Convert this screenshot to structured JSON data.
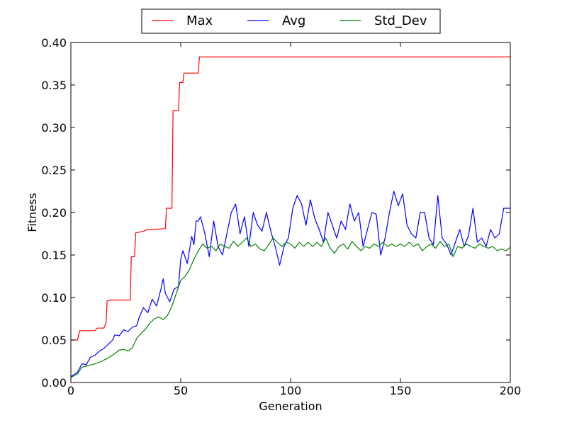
{
  "chart_data": {
    "type": "line",
    "title": "",
    "xlabel": "Generation",
    "ylabel": "Fitness",
    "xlim": [
      0,
      200
    ],
    "ylim": [
      0.0,
      0.4
    ],
    "xticks": [
      0,
      50,
      100,
      150,
      200
    ],
    "xtick_labels": [
      "0",
      "50",
      "100",
      "150",
      "200"
    ],
    "yticks": [
      0.0,
      0.05,
      0.1,
      0.15,
      0.2,
      0.25,
      0.3,
      0.35,
      0.4
    ],
    "ytick_labels": [
      "0.00",
      "0.05",
      "0.10",
      "0.15",
      "0.20",
      "0.25",
      "0.30",
      "0.35",
      "0.40"
    ],
    "grid": false,
    "legend_position": "top-center",
    "series": [
      {
        "name": "Max",
        "color": "#ff0000",
        "points": [
          [
            0,
            0.05
          ],
          [
            3,
            0.05
          ],
          [
            4,
            0.061
          ],
          [
            11,
            0.061
          ],
          [
            12,
            0.064
          ],
          [
            15,
            0.064
          ],
          [
            16,
            0.07
          ],
          [
            16.5,
            0.096
          ],
          [
            18,
            0.097
          ],
          [
            27,
            0.097
          ],
          [
            27.5,
            0.148
          ],
          [
            29,
            0.148
          ],
          [
            29.5,
            0.176
          ],
          [
            33,
            0.178
          ],
          [
            35,
            0.18
          ],
          [
            43,
            0.181
          ],
          [
            43.5,
            0.205
          ],
          [
            46,
            0.205
          ],
          [
            46.5,
            0.32
          ],
          [
            49,
            0.32
          ],
          [
            49.5,
            0.353
          ],
          [
            51,
            0.353
          ],
          [
            51.5,
            0.364
          ],
          [
            58,
            0.364
          ],
          [
            58.5,
            0.383
          ],
          [
            200,
            0.383
          ]
        ]
      },
      {
        "name": "Avg",
        "color": "#0000ff",
        "points": [
          [
            0,
            0.007
          ],
          [
            3,
            0.012
          ],
          [
            5,
            0.022
          ],
          [
            7,
            0.021
          ],
          [
            9,
            0.03
          ],
          [
            11,
            0.032
          ],
          [
            13,
            0.037
          ],
          [
            15,
            0.04
          ],
          [
            17,
            0.045
          ],
          [
            19,
            0.05
          ],
          [
            20,
            0.056
          ],
          [
            22,
            0.055
          ],
          [
            24,
            0.062
          ],
          [
            26,
            0.06
          ],
          [
            28,
            0.065
          ],
          [
            30,
            0.067
          ],
          [
            31,
            0.076
          ],
          [
            33,
            0.088
          ],
          [
            35,
            0.082
          ],
          [
            37,
            0.098
          ],
          [
            39,
            0.09
          ],
          [
            41,
            0.11
          ],
          [
            42,
            0.122
          ],
          [
            43,
            0.105
          ],
          [
            45,
            0.095
          ],
          [
            47,
            0.11
          ],
          [
            49,
            0.113
          ],
          [
            50,
            0.145
          ],
          [
            51,
            0.155
          ],
          [
            53,
            0.14
          ],
          [
            55,
            0.172
          ],
          [
            56,
            0.162
          ],
          [
            57,
            0.19
          ],
          [
            58,
            0.19
          ],
          [
            59,
            0.195
          ],
          [
            61,
            0.175
          ],
          [
            63,
            0.148
          ],
          [
            65,
            0.19
          ],
          [
            67,
            0.16
          ],
          [
            69,
            0.15
          ],
          [
            71,
            0.175
          ],
          [
            73,
            0.2
          ],
          [
            75,
            0.21
          ],
          [
            77,
            0.175
          ],
          [
            79,
            0.195
          ],
          [
            81,
            0.16
          ],
          [
            83,
            0.2
          ],
          [
            85,
            0.185
          ],
          [
            87,
            0.178
          ],
          [
            89,
            0.2
          ],
          [
            91,
            0.178
          ],
          [
            93,
            0.16
          ],
          [
            95,
            0.138
          ],
          [
            97,
            0.16
          ],
          [
            99,
            0.17
          ],
          [
            101,
            0.205
          ],
          [
            103,
            0.22
          ],
          [
            105,
            0.21
          ],
          [
            107,
            0.185
          ],
          [
            109,
            0.215
          ],
          [
            111,
            0.193
          ],
          [
            113,
            0.18
          ],
          [
            115,
            0.165
          ],
          [
            117,
            0.2
          ],
          [
            119,
            0.185
          ],
          [
            121,
            0.17
          ],
          [
            123,
            0.19
          ],
          [
            125,
            0.18
          ],
          [
            127,
            0.21
          ],
          [
            129,
            0.19
          ],
          [
            131,
            0.2
          ],
          [
            133,
            0.16
          ],
          [
            135,
            0.18
          ],
          [
            137,
            0.2
          ],
          [
            139,
            0.198
          ],
          [
            141,
            0.15
          ],
          [
            143,
            0.17
          ],
          [
            145,
            0.2
          ],
          [
            147,
            0.225
          ],
          [
            149,
            0.208
          ],
          [
            151,
            0.222
          ],
          [
            153,
            0.185
          ],
          [
            155,
            0.175
          ],
          [
            157,
            0.17
          ],
          [
            159,
            0.2
          ],
          [
            161,
            0.2
          ],
          [
            163,
            0.17
          ],
          [
            165,
            0.162
          ],
          [
            167,
            0.22
          ],
          [
            169,
            0.17
          ],
          [
            171,
            0.163
          ],
          [
            173,
            0.15
          ],
          [
            175,
            0.165
          ],
          [
            177,
            0.18
          ],
          [
            179,
            0.16
          ],
          [
            181,
            0.173
          ],
          [
            183,
            0.205
          ],
          [
            185,
            0.165
          ],
          [
            187,
            0.17
          ],
          [
            189,
            0.16
          ],
          [
            191,
            0.18
          ],
          [
            193,
            0.17
          ],
          [
            195,
            0.175
          ],
          [
            197,
            0.205
          ],
          [
            200,
            0.205
          ]
        ]
      },
      {
        "name": "Std_Dev",
        "color": "#008000",
        "points": [
          [
            0,
            0.006
          ],
          [
            3,
            0.01
          ],
          [
            5,
            0.018
          ],
          [
            8,
            0.02
          ],
          [
            11,
            0.022
          ],
          [
            14,
            0.025
          ],
          [
            17,
            0.029
          ],
          [
            20,
            0.034
          ],
          [
            22,
            0.038
          ],
          [
            24,
            0.039
          ],
          [
            26,
            0.037
          ],
          [
            28,
            0.041
          ],
          [
            30,
            0.052
          ],
          [
            32,
            0.058
          ],
          [
            34,
            0.063
          ],
          [
            36,
            0.07
          ],
          [
            38,
            0.075
          ],
          [
            40,
            0.077
          ],
          [
            42,
            0.074
          ],
          [
            44,
            0.079
          ],
          [
            46,
            0.09
          ],
          [
            48,
            0.105
          ],
          [
            50,
            0.12
          ],
          [
            52,
            0.125
          ],
          [
            54,
            0.133
          ],
          [
            56,
            0.145
          ],
          [
            58,
            0.155
          ],
          [
            60,
            0.163
          ],
          [
            62,
            0.158
          ],
          [
            64,
            0.16
          ],
          [
            66,
            0.155
          ],
          [
            68,
            0.163
          ],
          [
            70,
            0.16
          ],
          [
            72,
            0.158
          ],
          [
            74,
            0.166
          ],
          [
            76,
            0.16
          ],
          [
            78,
            0.165
          ],
          [
            80,
            0.17
          ],
          [
            82,
            0.16
          ],
          [
            84,
            0.163
          ],
          [
            86,
            0.157
          ],
          [
            88,
            0.155
          ],
          [
            90,
            0.162
          ],
          [
            92,
            0.17
          ],
          [
            94,
            0.165
          ],
          [
            96,
            0.16
          ],
          [
            98,
            0.165
          ],
          [
            100,
            0.163
          ],
          [
            102,
            0.158
          ],
          [
            104,
            0.165
          ],
          [
            106,
            0.16
          ],
          [
            108,
            0.165
          ],
          [
            110,
            0.16
          ],
          [
            112,
            0.165
          ],
          [
            114,
            0.16
          ],
          [
            116,
            0.17
          ],
          [
            118,
            0.158
          ],
          [
            120,
            0.152
          ],
          [
            122,
            0.16
          ],
          [
            124,
            0.163
          ],
          [
            126,
            0.157
          ],
          [
            128,
            0.166
          ],
          [
            130,
            0.16
          ],
          [
            132,
            0.155
          ],
          [
            134,
            0.16
          ],
          [
            136,
            0.158
          ],
          [
            138,
            0.163
          ],
          [
            140,
            0.16
          ],
          [
            142,
            0.165
          ],
          [
            144,
            0.16
          ],
          [
            146,
            0.163
          ],
          [
            148,
            0.16
          ],
          [
            150,
            0.163
          ],
          [
            152,
            0.16
          ],
          [
            154,
            0.165
          ],
          [
            156,
            0.16
          ],
          [
            158,
            0.163
          ],
          [
            160,
            0.155
          ],
          [
            162,
            0.16
          ],
          [
            164,
            0.163
          ],
          [
            166,
            0.158
          ],
          [
            168,
            0.166
          ],
          [
            170,
            0.16
          ],
          [
            172,
            0.163
          ],
          [
            174,
            0.148
          ],
          [
            176,
            0.16
          ],
          [
            178,
            0.158
          ],
          [
            180,
            0.163
          ],
          [
            182,
            0.16
          ],
          [
            184,
            0.158
          ],
          [
            186,
            0.163
          ],
          [
            188,
            0.16
          ],
          [
            190,
            0.158
          ],
          [
            192,
            0.16
          ],
          [
            194,
            0.155
          ],
          [
            196,
            0.157
          ],
          [
            198,
            0.155
          ],
          [
            200,
            0.159
          ]
        ]
      }
    ]
  }
}
